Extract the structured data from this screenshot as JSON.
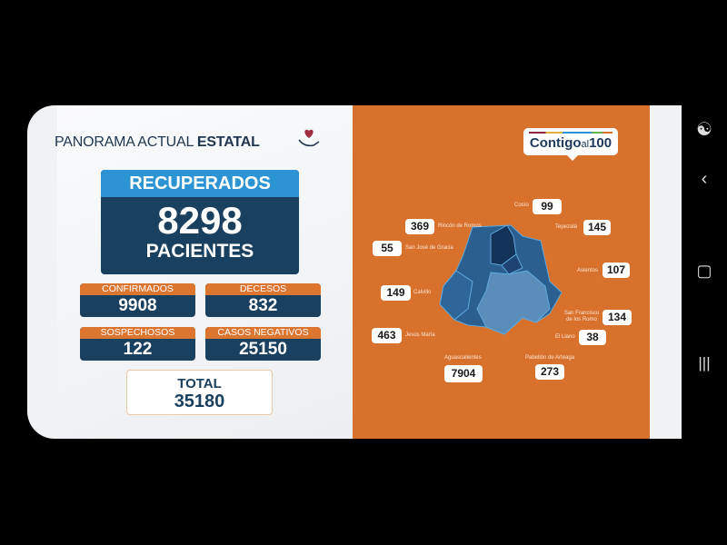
{
  "header": {
    "title_light": "PANORAMA ACTUAL",
    "title_bold": "ESTATAL"
  },
  "recuperados": {
    "label": "RECUPERADOS",
    "value": "8298",
    "unit": "PACIENTES"
  },
  "stats": [
    {
      "label": "CONFIRMADOS",
      "value": "9908"
    },
    {
      "label": "DECESOS",
      "value": "832"
    },
    {
      "label": "SOSPECHOSOS",
      "value": "122"
    },
    {
      "label": "CASOS NEGATIVOS",
      "value": "25150"
    }
  ],
  "total": {
    "label": "TOTAL",
    "value": "35180"
  },
  "logo": {
    "text_main": "Contigo",
    "text_small": "al",
    "text_num": "100"
  },
  "municipios": [
    {
      "name": "Cosío",
      "value": "99"
    },
    {
      "name": "Rincón de Romos",
      "value": "369"
    },
    {
      "name": "Tepezalá",
      "value": "145"
    },
    {
      "name": "San José de Gracia",
      "value": "55"
    },
    {
      "name": "Asientos",
      "value": "107"
    },
    {
      "name": "Calvillo",
      "value": "149"
    },
    {
      "name": "San Francisco de los Romo",
      "value": "134"
    },
    {
      "name": "Jesús María",
      "value": "463"
    },
    {
      "name": "El Llano",
      "value": "38"
    },
    {
      "name": "Aguascalientes",
      "value": "7904"
    },
    {
      "name": "Pabellón de Arteaga",
      "value": "273"
    }
  ],
  "colors": {
    "orange": "#d8712c",
    "navy": "#1a4060",
    "blue": "#2c94d3"
  },
  "android_nav": {
    "icons": [
      "accessibility-icon",
      "back-icon",
      "home-icon",
      "recents-icon"
    ]
  }
}
